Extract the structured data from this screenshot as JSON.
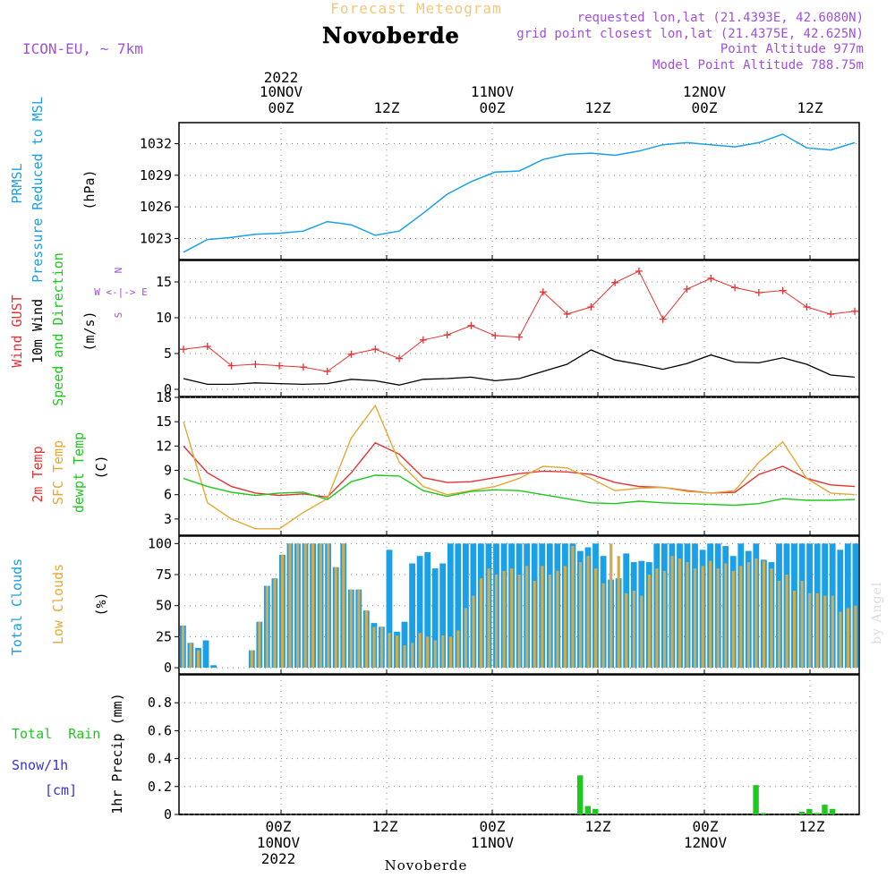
{
  "header": {
    "product": "Forecast Meteogram",
    "location": "Novoberde",
    "model": "ICON-EU, ~ 7km",
    "requested": "requested lon,lat (21.4393E, 42.6080N)",
    "gridpoint": "grid point closest lon,lat (21.4375E, 42.625N)",
    "altitude": "Point Altitude 977m",
    "model_altitude": "Model Point Altitude 788.75m",
    "footer_location": "Novoberde",
    "credit": "by Angel"
  },
  "time_axis": {
    "top_year": "2022",
    "top_labels": [
      "10NOV",
      "00Z",
      "12Z",
      "11NOV",
      "00Z",
      "12Z",
      "12NOV",
      "00Z",
      "12Z"
    ],
    "bottom_labels": [
      "00Z",
      "10NOV",
      "2022",
      "12Z",
      "00Z",
      "11NOV",
      "12Z",
      "00Z",
      "12NOV",
      "12Z"
    ]
  },
  "panel_labels": {
    "prmsl": "PRMSL",
    "prmsl_long": "Pressure Reduced to MSL",
    "prmsl_unit": "(hPa)",
    "gust": "Wind GUST",
    "wind10": "10m Wind",
    "wind_dir": "Speed and Direction",
    "wind_unit": "(m/s)",
    "compass_n": "N",
    "compass_s": "S",
    "compass_we": "W <-|-> E",
    "t2m": "2m Temp",
    "tsfc": "SFC Temp",
    "tdew": "dewpt Temp",
    "temp_unit": "(C)",
    "tcc": "Total Clouds",
    "lcc": "Low Clouds",
    "cloud_unit": "(%)",
    "rain": "Total  Rain",
    "snow": "Snow/1h",
    "snow_unit": "[cm]",
    "precip": "1hr Precip (mm)"
  },
  "colors": {
    "pressure": "#1aa0e6",
    "gust": "#e63232",
    "wind": "#000000",
    "t2m": "#e63232",
    "tsfc": "#e6a832",
    "tdew": "#1ec81e",
    "tcc": "#1aa0e6",
    "lcc": "#d2aa50",
    "rain": "#1ec81e",
    "purple": "#a050dc",
    "title_orange": "#f0c878"
  },
  "chart_data": {
    "type": "line",
    "time_step_hours": 3,
    "panels": [
      {
        "id": "pressure",
        "ylim": [
          1021,
          1034
        ],
        "yticks": [
          1023,
          1026,
          1029,
          1032
        ],
        "series": [
          {
            "name": "PRMSL",
            "values": [
              1021.7,
              1022.9,
              1023.1,
              1023.4,
              1023.5,
              1023.7,
              1024.6,
              1024.3,
              1023.3,
              1023.7,
              1025.4,
              1027.2,
              1028.4,
              1029.3,
              1029.4,
              1030.5,
              1031.0,
              1031.1,
              1030.9,
              1031.3,
              1031.9,
              1032.1,
              1031.9,
              1031.7,
              1032.1,
              1032.9,
              1031.6,
              1031.4,
              1032.1
            ]
          }
        ]
      },
      {
        "id": "wind",
        "ylim": [
          -1,
          18
        ],
        "yticks": [
          0,
          5,
          10,
          15
        ],
        "series": [
          {
            "name": "Wind GUST",
            "values": [
              5.6,
              6.0,
              3.3,
              3.5,
              3.3,
              3.1,
              2.5,
              4.9,
              5.6,
              4.3,
              6.9,
              7.6,
              8.9,
              7.5,
              7.3,
              13.6,
              10.5,
              11.5,
              14.9,
              16.5,
              9.8,
              14.0,
              15.5,
              14.2,
              13.5,
              13.8,
              11.5,
              10.5,
              10.9
            ]
          },
          {
            "name": "10m Wind",
            "values": [
              1.5,
              0.7,
              0.7,
              0.9,
              0.8,
              0.7,
              0.8,
              1.4,
              1.2,
              0.6,
              1.4,
              1.5,
              1.7,
              1.2,
              1.5,
              2.5,
              3.5,
              5.5,
              4.1,
              3.5,
              2.8,
              3.6,
              4.8,
              3.8,
              3.7,
              4.4,
              3.5,
              2.0,
              1.7
            ]
          }
        ]
      },
      {
        "id": "temperature",
        "ylim": [
          1,
          18
        ],
        "yticks": [
          3,
          6,
          9,
          12,
          15,
          18
        ],
        "series": [
          {
            "name": "2m Temp",
            "values": [
              12.0,
              8.7,
              7.0,
              6.2,
              5.9,
              6.1,
              5.7,
              8.7,
              12.4,
              11.0,
              8.1,
              7.5,
              7.6,
              8.1,
              8.6,
              8.9,
              8.8,
              8.5,
              7.5,
              7.0,
              6.9,
              6.5,
              6.2,
              6.3,
              8.5,
              9.5,
              8.0,
              7.2,
              7.0
            ]
          },
          {
            "name": "SFC Temp",
            "values": [
              15.0,
              5.0,
              3.0,
              1.8,
              1.8,
              3.8,
              5.5,
              13.0,
              17.0,
              10.0,
              7.0,
              6.0,
              6.5,
              7.0,
              8.0,
              9.5,
              9.3,
              8.0,
              6.5,
              6.8,
              6.9,
              6.4,
              6.2,
              6.5,
              10.0,
              12.5,
              8.0,
              6.2,
              6.0
            ]
          },
          {
            "name": "dewpt Temp",
            "values": [
              8.0,
              7.0,
              6.3,
              5.9,
              6.2,
              6.3,
              5.4,
              7.6,
              8.4,
              8.3,
              6.5,
              5.8,
              6.4,
              6.6,
              6.5,
              6.0,
              5.5,
              5.0,
              4.9,
              5.2,
              5.0,
              4.9,
              4.8,
              4.7,
              4.9,
              5.5,
              5.3,
              5.3,
              5.4
            ]
          }
        ]
      },
      {
        "id": "clouds",
        "ylim": [
          -5,
          106
        ],
        "yticks": [
          0,
          25,
          50,
          75,
          100
        ],
        "series": [
          {
            "name": "Total Clouds",
            "values": [
              34,
              20,
              16,
              22,
              2,
              0,
              0,
              0,
              0,
              14,
              37,
              66,
              72,
              91,
              100,
              100,
              100,
              100,
              100,
              100,
              81,
              100,
              63,
              63,
              46,
              36,
              33,
              95,
              29,
              37,
              84,
              90,
              93,
              80,
              84,
              100,
              100,
              100,
              100,
              100,
              100,
              100,
              100,
              100,
              100,
              100,
              100,
              100,
              100,
              100,
              100,
              100,
              94,
              97,
              100,
              90,
              71,
              72,
              92,
              85,
              86,
              85,
              100,
              100,
              100,
              100,
              100,
              100,
              95,
              100,
              100,
              98,
              90,
              100,
              94,
              100,
              87,
              85,
              100,
              100,
              100,
              100,
              100,
              100,
              100,
              100,
              95,
              100,
              100
            ]
          },
          {
            "name": "Low Clouds",
            "values": [
              34,
              20,
              14,
              0,
              0,
              0,
              0,
              0,
              0,
              14,
              37,
              66,
              72,
              91,
              100,
              100,
              100,
              100,
              100,
              100,
              81,
              100,
              63,
              63,
              46,
              33,
              33,
              28,
              26,
              18,
              20,
              28,
              25,
              22,
              26,
              25,
              30,
              48,
              58,
              72,
              80,
              75,
              78,
              80,
              75,
              82,
              70,
              82,
              75,
              78,
              82,
              98,
              85,
              90,
              80,
              68,
              100,
              90,
              60,
              62,
              58,
              75,
              80,
              78,
              90,
              88,
              85,
              80,
              82,
              86,
              80,
              84,
              78,
              82,
              85,
              88,
              86,
              80,
              70,
              75,
              62,
              70,
              60,
              60,
              58,
              58,
              45,
              48,
              50
            ]
          }
        ]
      },
      {
        "id": "precip",
        "ylim": [
          0,
          1.0
        ],
        "yticks": [
          0,
          0.2,
          0.4,
          0.6,
          0.8
        ],
        "series": [
          {
            "name": "Total Rain",
            "values": [
              0,
              0,
              0,
              0,
              0,
              0,
              0,
              0,
              0,
              0,
              0,
              0,
              0,
              0,
              0,
              0,
              0,
              0,
              0,
              0,
              0,
              0,
              0,
              0,
              0,
              0,
              0,
              0,
              0,
              0,
              0,
              0,
              0,
              0,
              0,
              0,
              0,
              0,
              0,
              0,
              0,
              0,
              0,
              0,
              0,
              0,
              0,
              0,
              0,
              0,
              0,
              0,
              0.28,
              0.06,
              0.04,
              0,
              0,
              0,
              0,
              0,
              0,
              0,
              0,
              0,
              0,
              0,
              0,
              0,
              0,
              0,
              0,
              0,
              0,
              0,
              0,
              0.21,
              0.01,
              0,
              0,
              0,
              0,
              0.02,
              0.04,
              0.01,
              0.07,
              0.04,
              0,
              0,
              0
            ]
          }
        ]
      }
    ]
  }
}
